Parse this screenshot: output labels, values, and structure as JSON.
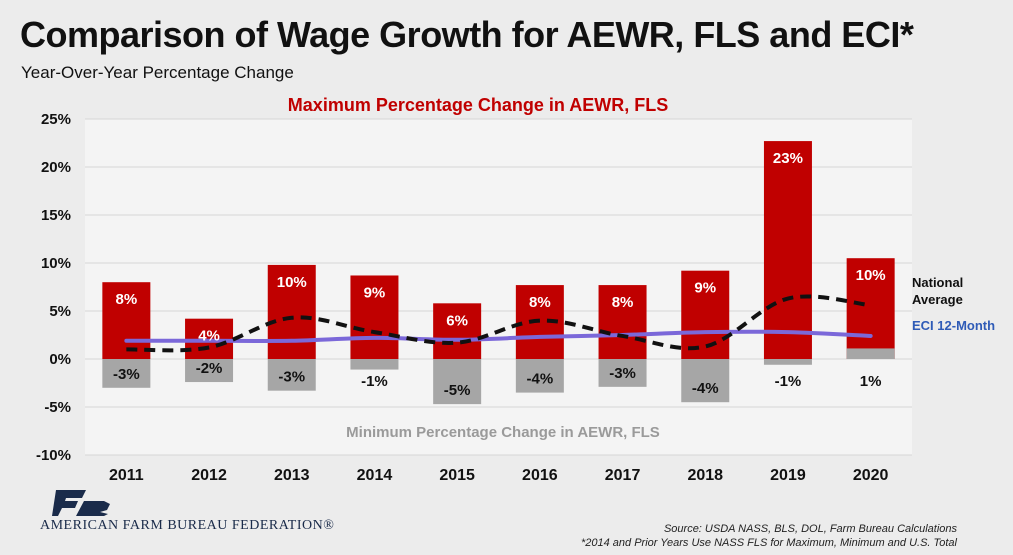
{
  "header": {
    "title": "Comparison of Wage Growth for AEWR, FLS and ECI*",
    "subtitle": "Year-Over-Year Percentage Change"
  },
  "colors": {
    "max_bar": "#c00000",
    "min_bar": "#a6a6a6",
    "national_avg_line": "#111111",
    "eci_line": "#7b68d9",
    "eci_label": "#2f5bb7"
  },
  "chart_data": {
    "type": "bar",
    "categories": [
      "2011",
      "2012",
      "2013",
      "2014",
      "2015",
      "2016",
      "2017",
      "2018",
      "2019",
      "2020"
    ],
    "series": [
      {
        "name": "Maximum Percentage Change in AEWR, FLS",
        "values": [
          8,
          4.2,
          9.8,
          8.7,
          5.8,
          7.7,
          7.7,
          9.2,
          22.7,
          10.5
        ],
        "labels": [
          "8%",
          "4%",
          "10%",
          "9%",
          "6%",
          "8%",
          "8%",
          "9%",
          "23%",
          "10%"
        ]
      },
      {
        "name": "Minimum Percentage Change in AEWR, FLS",
        "values": [
          -3,
          -2.4,
          -3.3,
          -1.1,
          -4.7,
          -3.5,
          -2.9,
          -4.5,
          -0.6,
          1.1
        ],
        "labels": [
          "-3%",
          "-2%",
          "-3%",
          "-1%",
          "-5%",
          "-4%",
          "-3%",
          "-4%",
          "-1%",
          "1%"
        ]
      },
      {
        "name": "National Average",
        "type": "line",
        "style": "dashed",
        "values": [
          1.0,
          1.2,
          4.3,
          2.8,
          1.7,
          4.0,
          2.4,
          1.3,
          6.3,
          5.6
        ]
      },
      {
        "name": "ECI 12-Month",
        "type": "line",
        "values": [
          1.9,
          1.9,
          1.9,
          2.2,
          2.0,
          2.3,
          2.5,
          2.8,
          2.8,
          2.4
        ]
      }
    ],
    "max_annotation": "Maximum Percentage Change in AEWR, FLS",
    "min_annotation": "Minimum Percentage Change in AEWR, FLS",
    "yticks": [
      "25%",
      "20%",
      "15%",
      "10%",
      "5%",
      "0%",
      "-5%",
      "-10%"
    ],
    "ytick_values": [
      25,
      20,
      15,
      10,
      5,
      0,
      -5,
      -10
    ],
    "ylim": [
      -10,
      25
    ],
    "grid": true,
    "legend_placement": "right-inline"
  },
  "footer": {
    "logo_text": "AMERICAN FARM BUREAU FEDERATION®",
    "source_line1": "Source: USDA NASS, BLS, DOL, Farm Bureau Calculations",
    "source_line2": "*2014 and Prior Years Use NASS FLS for Maximum, Minimum and U.S. Total"
  }
}
